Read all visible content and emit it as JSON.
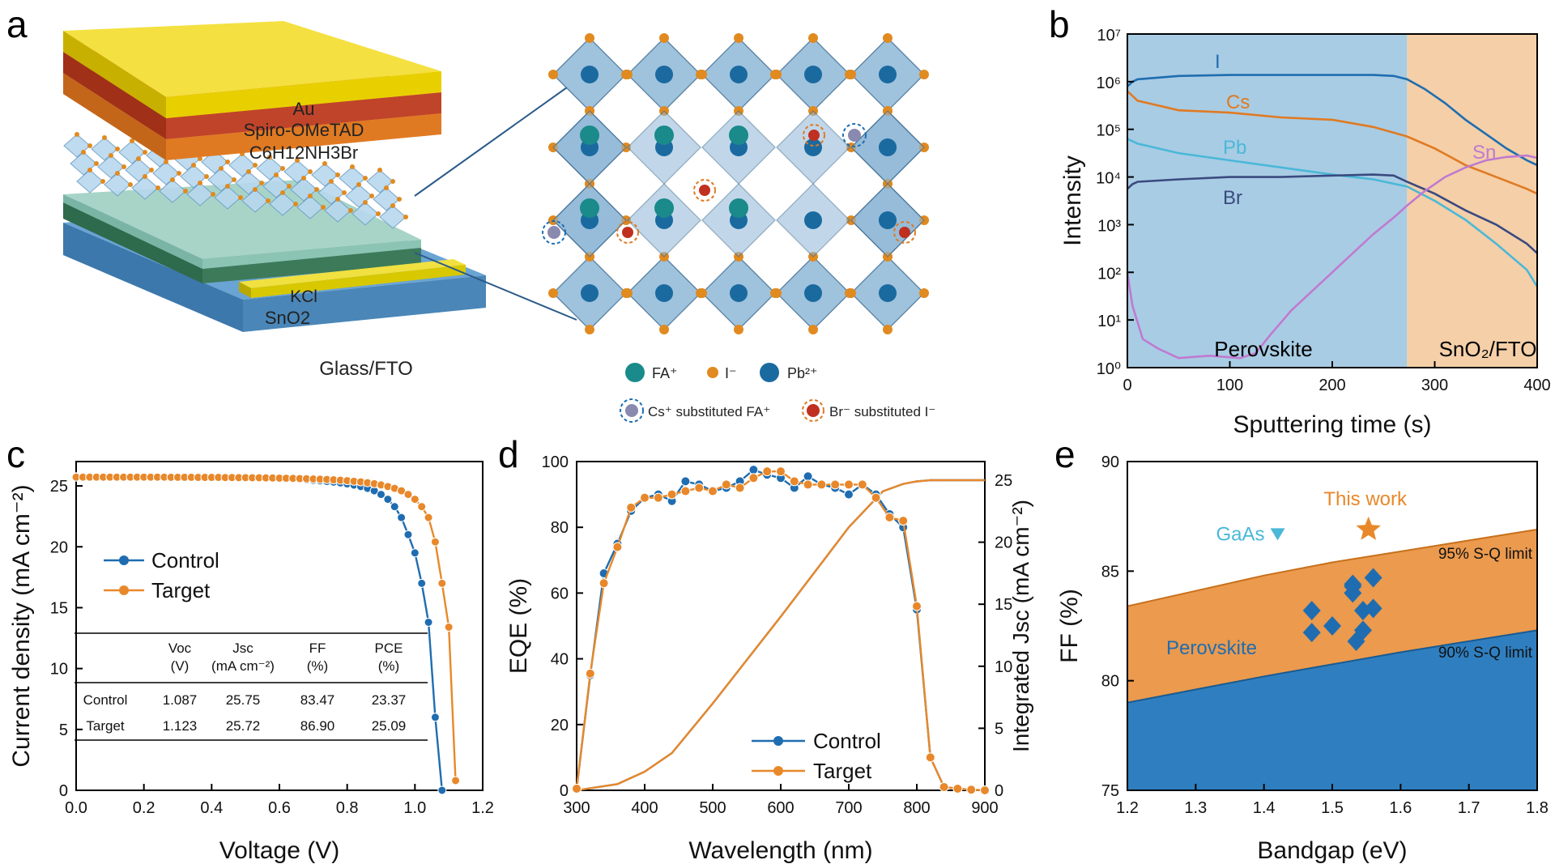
{
  "panel_labels": {
    "a": "a",
    "b": "b",
    "c": "c",
    "d": "d",
    "e": "e"
  },
  "device_stack": {
    "layers": [
      "Au",
      "Spiro-OMeTAD",
      "C6H12NH3Br",
      "KCl",
      "SnO2",
      "Glass/FTO"
    ],
    "colors": {
      "au": "#e8d000",
      "spiro": "#c0442a",
      "pea": "#e07a22",
      "kcl": "#8cc4b4",
      "sno2": "#3c7a5a",
      "fto": "#4a86b8"
    }
  },
  "crystal": {
    "legend": [
      "FA⁺",
      "I⁻",
      "Pb²⁺"
    ],
    "legend2": [
      "Cs⁺ substituted FA⁺",
      "Br⁻ substituted I⁻"
    ],
    "colors": {
      "fa": "#1a8a8a",
      "iodide": "#e08a20",
      "pb": "#1a6aa0",
      "cs": "#8a8ab0",
      "br": "#c03020"
    }
  },
  "chart_data": [
    {
      "panel": "b",
      "type": "line",
      "xlabel": "Sputtering time (s)",
      "ylabel": "Intensity",
      "xlim": [
        0,
        400
      ],
      "ylim_log10": [
        0,
        7
      ],
      "xticks": [
        "0",
        "100",
        "200",
        "300",
        "400"
      ],
      "yticks": [
        "10⁰",
        "10¹",
        "10²",
        "10³",
        "10⁴",
        "10⁵",
        "10⁶",
        "10⁷"
      ],
      "regions": [
        {
          "label": "Perovskite",
          "x": [
            0,
            273
          ],
          "color": "#a8cce4"
        },
        {
          "label": "SnO₂/FTO",
          "x": [
            273,
            400
          ],
          "color": "#f4cfa8"
        }
      ],
      "series": [
        {
          "name": "I",
          "color": "#1f6db0",
          "x": [
            0,
            5,
            10,
            50,
            100,
            150,
            200,
            240,
            260,
            273,
            290,
            310,
            330,
            350,
            370,
            390,
            400
          ],
          "log10y": [
            5.9,
            6.0,
            6.05,
            6.12,
            6.14,
            6.14,
            6.14,
            6.14,
            6.12,
            6.05,
            5.85,
            5.55,
            5.2,
            4.9,
            4.6,
            4.35,
            4.25
          ]
        },
        {
          "name": "Cs",
          "color": "#e07a22",
          "x": [
            0,
            10,
            50,
            100,
            150,
            200,
            240,
            273,
            300,
            330,
            360,
            390,
            400
          ],
          "log10y": [
            5.8,
            5.6,
            5.4,
            5.35,
            5.25,
            5.2,
            5.05,
            4.85,
            4.6,
            4.25,
            4.0,
            3.75,
            3.65
          ]
        },
        {
          "name": "Pb",
          "color": "#4ab8d8",
          "x": [
            0,
            10,
            50,
            100,
            150,
            200,
            240,
            273,
            300,
            330,
            360,
            390,
            400
          ],
          "log10y": [
            4.8,
            4.7,
            4.5,
            4.35,
            4.2,
            4.05,
            3.95,
            3.8,
            3.5,
            3.1,
            2.6,
            2.05,
            1.7
          ]
        },
        {
          "name": "Br",
          "color": "#3a4a80",
          "x": [
            0,
            5,
            10,
            50,
            100,
            150,
            200,
            240,
            260,
            273,
            300,
            330,
            360,
            390,
            400
          ],
          "log10y": [
            3.75,
            3.85,
            3.9,
            3.95,
            4.0,
            4.0,
            4.03,
            4.05,
            4.03,
            3.9,
            3.65,
            3.3,
            3.0,
            2.6,
            2.4
          ]
        },
        {
          "name": "Sn",
          "color": "#c07ad0",
          "x": [
            0,
            5,
            15,
            30,
            50,
            80,
            110,
            125,
            140,
            160,
            180,
            200,
            220,
            240,
            260,
            273,
            290,
            310,
            330,
            350,
            370,
            390,
            400
          ],
          "log10y": [
            2.0,
            1.3,
            0.6,
            0.4,
            0.2,
            0.25,
            0.2,
            0.3,
            0.7,
            1.2,
            1.6,
            2.0,
            2.4,
            2.8,
            3.15,
            3.4,
            3.7,
            4.0,
            4.2,
            4.35,
            4.42,
            4.45,
            4.4
          ]
        }
      ]
    },
    {
      "panel": "c",
      "type": "line",
      "xlabel": "Voltage (V)",
      "ylabel": "Current density (mA cm⁻²)",
      "xlim": [
        0,
        1.2
      ],
      "ylim": [
        0,
        27
      ],
      "xticks": [
        "0.0",
        "0.2",
        "0.4",
        "0.6",
        "0.8",
        "1.0",
        "1.2"
      ],
      "yticks": [
        "0",
        "5",
        "10",
        "15",
        "20",
        "25"
      ],
      "series": [
        {
          "name": "Control",
          "color": "#1f6db0",
          "x": [
            0,
            0.02,
            0.04,
            0.06,
            0.08,
            0.1,
            0.12,
            0.14,
            0.16,
            0.18,
            0.2,
            0.22,
            0.24,
            0.26,
            0.28,
            0.3,
            0.32,
            0.34,
            0.36,
            0.38,
            0.4,
            0.42,
            0.44,
            0.46,
            0.48,
            0.5,
            0.52,
            0.54,
            0.56,
            0.58,
            0.6,
            0.62,
            0.64,
            0.66,
            0.68,
            0.7,
            0.72,
            0.74,
            0.76,
            0.78,
            0.8,
            0.82,
            0.84,
            0.86,
            0.88,
            0.9,
            0.92,
            0.94,
            0.96,
            0.98,
            1.0,
            1.02,
            1.04,
            1.06,
            1.08
          ],
          "y": [
            25.75,
            25.75,
            25.75,
            25.75,
            25.75,
            25.75,
            25.75,
            25.75,
            25.75,
            25.75,
            25.75,
            25.74,
            25.74,
            25.74,
            25.73,
            25.73,
            25.73,
            25.72,
            25.72,
            25.71,
            25.71,
            25.7,
            25.7,
            25.69,
            25.68,
            25.67,
            25.66,
            25.65,
            25.64,
            25.62,
            25.6,
            25.58,
            25.56,
            25.53,
            25.5,
            25.46,
            25.42,
            25.37,
            25.32,
            25.25,
            25.17,
            25.07,
            24.95,
            24.8,
            24.6,
            24.3,
            23.9,
            23.3,
            22.4,
            21.0,
            19.5,
            17.0,
            13.8,
            6.0,
            0.0
          ]
        },
        {
          "name": "Target",
          "color": "#e8882a",
          "x": [
            0,
            0.02,
            0.04,
            0.06,
            0.08,
            0.1,
            0.12,
            0.14,
            0.16,
            0.18,
            0.2,
            0.22,
            0.24,
            0.26,
            0.28,
            0.3,
            0.32,
            0.34,
            0.36,
            0.38,
            0.4,
            0.42,
            0.44,
            0.46,
            0.48,
            0.5,
            0.52,
            0.54,
            0.56,
            0.58,
            0.6,
            0.62,
            0.64,
            0.66,
            0.68,
            0.7,
            0.72,
            0.74,
            0.76,
            0.78,
            0.8,
            0.82,
            0.84,
            0.86,
            0.88,
            0.9,
            0.92,
            0.94,
            0.96,
            0.98,
            1.0,
            1.02,
            1.04,
            1.06,
            1.08,
            1.1,
            1.12
          ],
          "y": [
            25.72,
            25.72,
            25.72,
            25.72,
            25.72,
            25.72,
            25.72,
            25.72,
            25.72,
            25.72,
            25.72,
            25.72,
            25.72,
            25.72,
            25.71,
            25.71,
            25.71,
            25.71,
            25.7,
            25.7,
            25.7,
            25.7,
            25.69,
            25.69,
            25.68,
            25.68,
            25.67,
            25.67,
            25.66,
            25.65,
            25.64,
            25.63,
            25.62,
            25.6,
            25.59,
            25.57,
            25.55,
            25.53,
            25.5,
            25.47,
            25.43,
            25.38,
            25.33,
            25.26,
            25.18,
            25.08,
            24.95,
            24.8,
            24.6,
            24.3,
            23.9,
            23.3,
            22.4,
            20.4,
            17.0,
            13.4,
            0.8
          ]
        }
      ],
      "legend": [
        "Control",
        "Target"
      ],
      "table": {
        "headers": [
          [
            "",
            "Voc",
            "Jsc",
            "FF",
            "PCE"
          ],
          [
            "",
            "(V)",
            "(mA cm⁻²)",
            "(%)",
            "(%)"
          ]
        ],
        "rows": [
          [
            "Control",
            "1.087",
            "25.75",
            "83.47",
            "23.37"
          ],
          [
            "Target",
            "1.123",
            "25.72",
            "86.90",
            "25.09"
          ]
        ]
      }
    },
    {
      "panel": "d",
      "type": "line",
      "xlabel": "Wavelength (nm)",
      "ylabel": "EQE (%)",
      "ylabel_right": "Integrated Jsc (mA cm⁻²)",
      "xlim": [
        300,
        900
      ],
      "ylim": [
        0,
        100
      ],
      "ylim_right": [
        0,
        26.5
      ],
      "xticks": [
        "300",
        "400",
        "500",
        "600",
        "700",
        "800",
        "900"
      ],
      "yticks": [
        "0",
        "20",
        "40",
        "60",
        "80",
        "100"
      ],
      "yticks_right": [
        "0",
        "5",
        "10",
        "15",
        "20",
        "25"
      ],
      "series": [
        {
          "name": "Control",
          "color": "#1f6db0",
          "x": [
            300,
            320,
            340,
            360,
            380,
            400,
            420,
            440,
            460,
            480,
            500,
            520,
            540,
            560,
            580,
            600,
            620,
            640,
            660,
            680,
            700,
            720,
            740,
            760,
            780,
            800,
            820,
            840,
            860,
            880,
            900
          ],
          "y": [
            0.5,
            35,
            66,
            75,
            85,
            89,
            90,
            88,
            94,
            93,
            91,
            92,
            94,
            97.5,
            96,
            95,
            92,
            95.5,
            93,
            92,
            90,
            93,
            90,
            84,
            80,
            55,
            10,
            1,
            0.5,
            0.2,
            0
          ]
        },
        {
          "name": "Target",
          "color": "#e8882a",
          "x": [
            300,
            320,
            340,
            360,
            380,
            400,
            420,
            440,
            460,
            480,
            500,
            520,
            540,
            560,
            580,
            600,
            620,
            640,
            660,
            680,
            700,
            720,
            740,
            760,
            780,
            800,
            820,
            840,
            860,
            880,
            900
          ],
          "y": [
            0.5,
            35.5,
            63,
            74,
            86,
            89,
            89,
            90,
            91,
            92,
            91,
            93,
            92,
            95,
            97,
            97,
            94,
            93,
            93,
            93,
            93,
            93,
            89,
            83,
            82,
            56,
            10,
            1,
            0.5,
            0.2,
            0
          ]
        }
      ],
      "integrated": {
        "x": [
          300,
          360,
          400,
          440,
          500,
          550,
          600,
          650,
          700,
          750,
          780,
          800,
          820,
          840,
          860,
          900
        ],
        "y": [
          0,
          0.5,
          1.5,
          3,
          7,
          10.5,
          14,
          17.6,
          21.2,
          24.1,
          24.7,
          24.9,
          25.0,
          25.0,
          25.0,
          25.0
        ]
      },
      "legend": [
        "Control",
        "Target"
      ]
    },
    {
      "panel": "e",
      "type": "scatter",
      "xlabel": "Bandgap (eV)",
      "ylabel": "FF (%)",
      "xlim": [
        1.2,
        1.8
      ],
      "ylim": [
        75,
        90
      ],
      "xticks": [
        "1.2",
        "1.3",
        "1.4",
        "1.5",
        "1.6",
        "1.7",
        "1.8"
      ],
      "yticks": [
        "75",
        "80",
        "85",
        "90"
      ],
      "sq90": {
        "x": [
          1.2,
          1.3,
          1.4,
          1.5,
          1.6,
          1.7,
          1.8
        ],
        "y": [
          79.0,
          79.6,
          80.2,
          80.75,
          81.3,
          81.8,
          82.3
        ]
      },
      "sq95": {
        "x": [
          1.2,
          1.3,
          1.4,
          1.5,
          1.6,
          1.7,
          1.8
        ],
        "y": [
          83.4,
          84.1,
          84.8,
          85.4,
          85.9,
          86.4,
          86.9
        ]
      },
      "perovskite_points": {
        "x": [
          1.47,
          1.47,
          1.5,
          1.53,
          1.53,
          1.535,
          1.545,
          1.545,
          1.56,
          1.56,
          1.53
        ],
        "y": [
          83.2,
          82.2,
          82.5,
          84.0,
          84.4,
          81.8,
          82.3,
          83.2,
          84.7,
          83.3,
          84.3
        ]
      },
      "gaas": {
        "label": "GaAs",
        "x": 1.42,
        "y": 86.7,
        "color": "#4ab8d8"
      },
      "this_work": {
        "label": "This work",
        "x": 1.553,
        "y": 86.9,
        "color": "#e8882a"
      },
      "labels": {
        "sq95": "95% S-Q limit",
        "sq90": "90% S-Q limit",
        "perovskite": "Perovskite"
      },
      "colors": {
        "blue": "#2f7fc0",
        "orange": "#eb9a4e",
        "diamond": "#1f6db0"
      }
    }
  ]
}
